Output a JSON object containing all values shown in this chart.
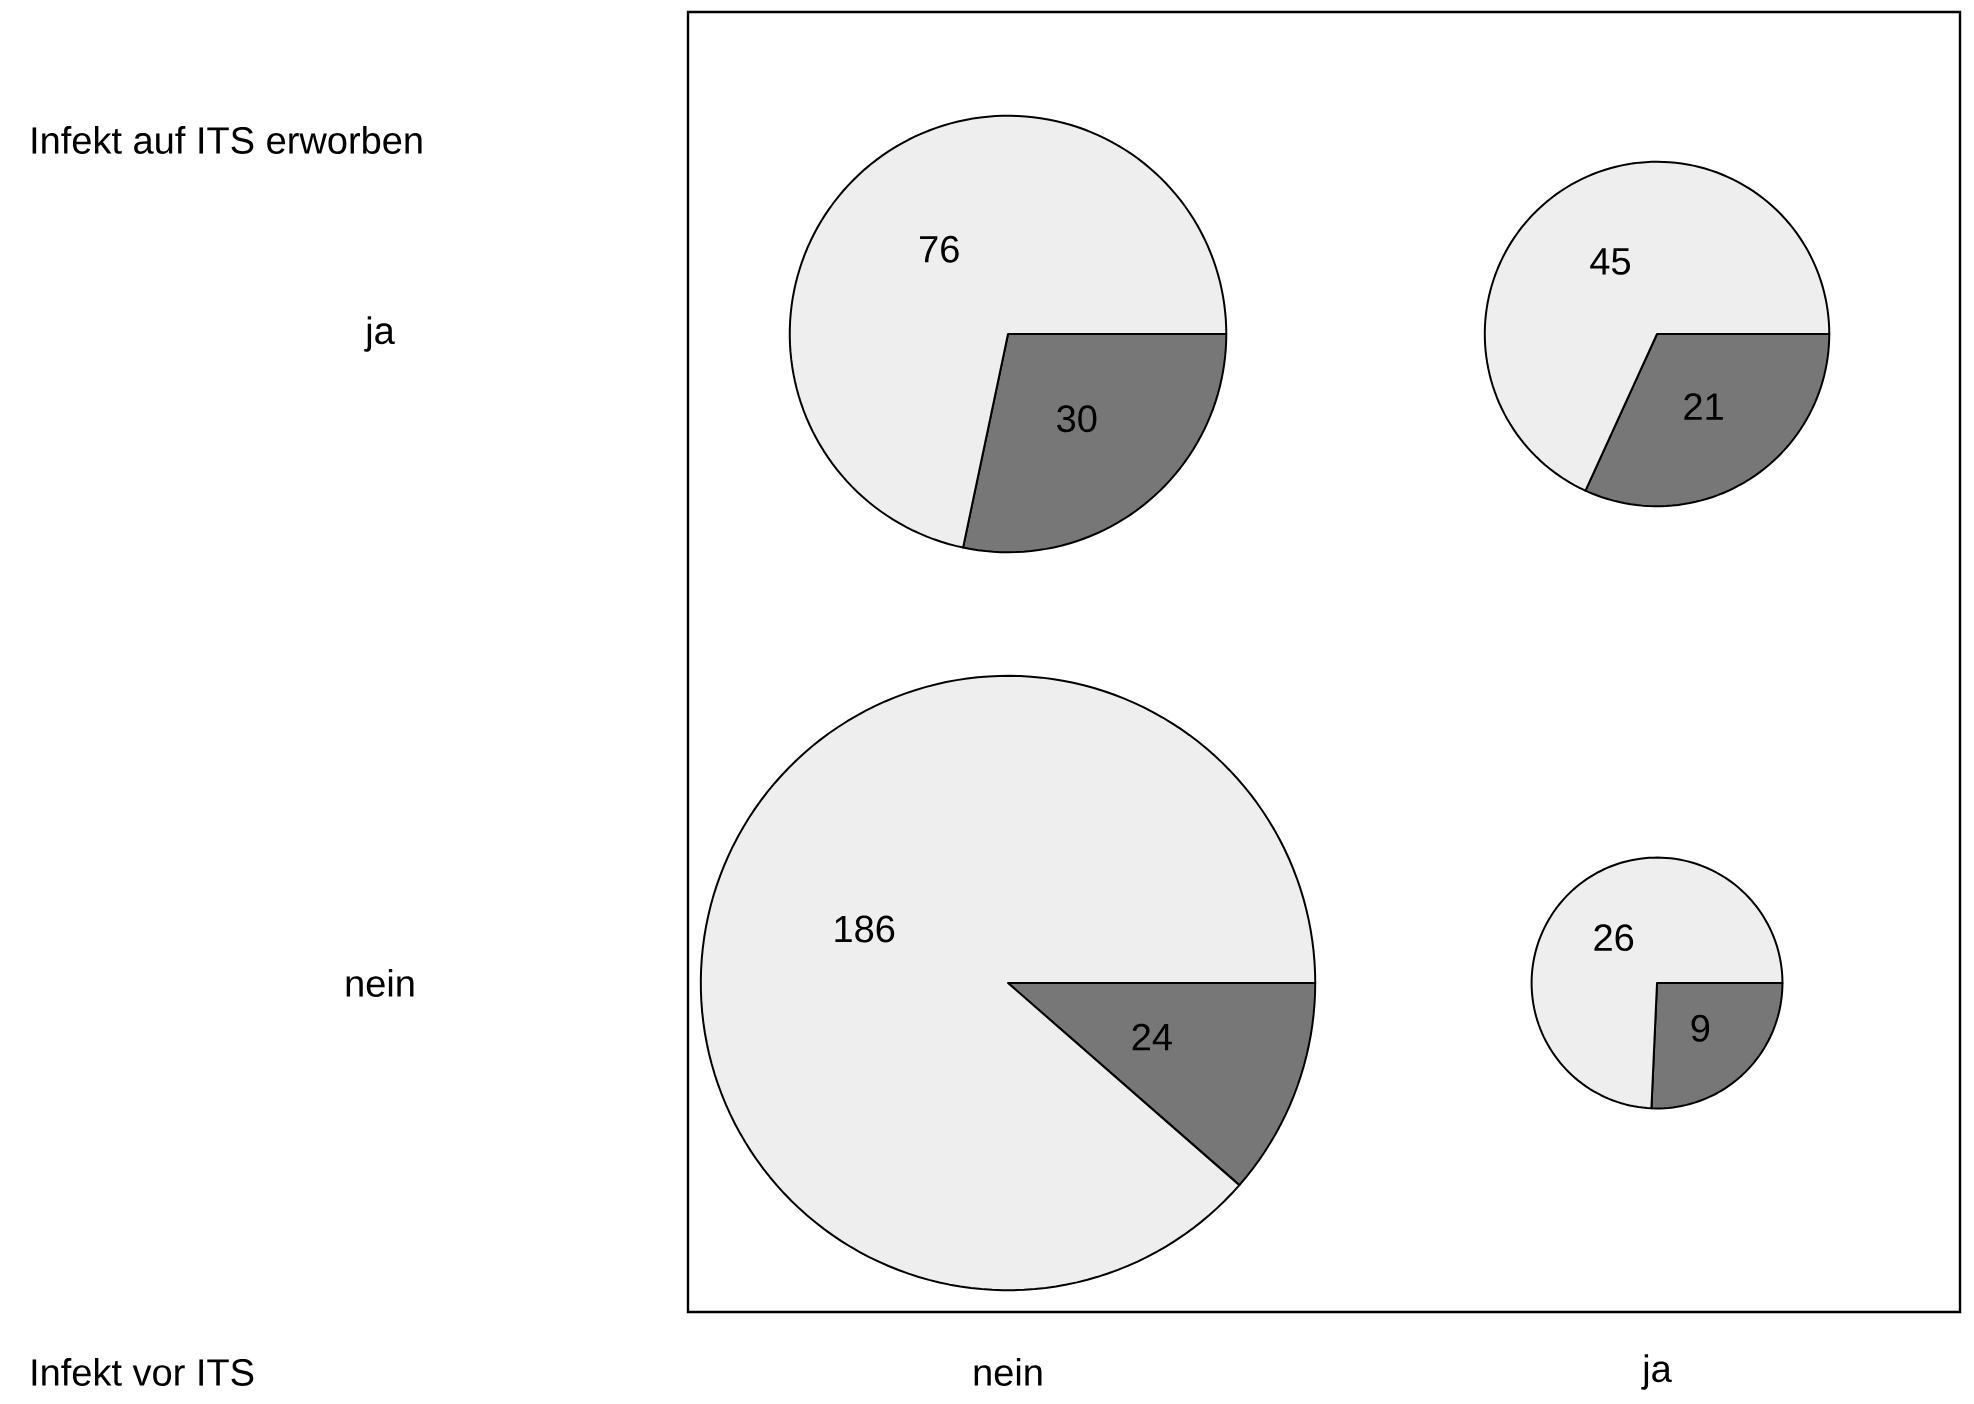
{
  "chart_data": [
    {
      "type": "other",
      "xlabel": "Infekt vor ITS",
      "ylabel": "Infekt auf ITS erworben",
      "categories": [
        "nein",
        "ja"
      ],
      "y_categories": [
        "ja",
        "nein"
      ]
    },
    {
      "type": "pie",
      "categories": [
        null,
        null
      ],
      "values": [
        30,
        76
      ],
      "colors": [
        "#777777",
        "#eeeeee"
      ],
      "data_labels": true
    },
    {
      "type": "pie",
      "categories": [
        null,
        null
      ],
      "values": [
        21,
        45
      ],
      "colors": [
        "#777777",
        "#eeeeee"
      ],
      "data_labels": true
    },
    {
      "type": "pie",
      "categories": [
        null,
        null
      ],
      "values": [
        24,
        186
      ],
      "colors": [
        "#777777",
        "#eeeeee"
      ],
      "data_labels": true
    },
    {
      "type": "pie",
      "categories": [
        null,
        null
      ],
      "values": [
        9,
        26
      ],
      "colors": [
        "#777777",
        "#eeeeee"
      ],
      "data_labels": true
    }
  ]
}
